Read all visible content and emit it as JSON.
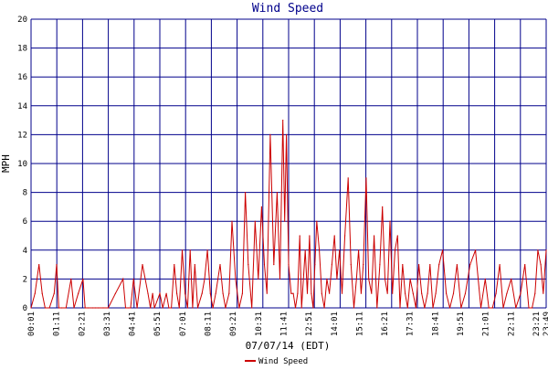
{
  "colors": {
    "title": "#00008b",
    "grid": "#00008b",
    "series": "#cc0000",
    "background": "#ffffff",
    "text": "#000000"
  },
  "chart_data": {
    "type": "line",
    "title": "Wind Speed",
    "xlabel": "07/07/14 (EDT)",
    "ylabel": "MPH",
    "ylim": [
      0,
      20
    ],
    "y_ticks": [
      "0",
      "2",
      "4",
      "6",
      "8",
      "10",
      "12",
      "14",
      "16",
      "18",
      "20"
    ],
    "x_ticks": [
      "00:01",
      "01:11",
      "02:21",
      "03:31",
      "04:41",
      "05:51",
      "07:01",
      "08:11",
      "09:21",
      "10:31",
      "11:41",
      "12:51",
      "14:01",
      "15:11",
      "16:21",
      "17:31",
      "18:41",
      "19:51",
      "21:01",
      "22:11",
      "23:21",
      "23:49"
    ],
    "grid": true,
    "legend_position": "bottom-center",
    "series": [
      {
        "name": "Wind Speed",
        "x": [
          "00:01",
          "00:12",
          "00:23",
          "00:32",
          "00:40",
          "00:52",
          "01:05",
          "01:12",
          "01:18",
          "01:26",
          "01:38",
          "01:52",
          "02:00",
          "02:12",
          "02:25",
          "02:31",
          "02:40",
          "02:52",
          "02:59",
          "03:08",
          "03:21",
          "03:35",
          "03:55",
          "04:16",
          "04:23",
          "04:30",
          "04:37",
          "04:45",
          "04:55",
          "05:10",
          "05:25",
          "05:32",
          "05:38",
          "05:43",
          "05:58",
          "06:06",
          "06:16",
          "06:23",
          "06:30",
          "06:38",
          "06:45",
          "06:52",
          "07:00",
          "07:08",
          "07:15",
          "07:22",
          "07:29",
          "07:35",
          "07:43",
          "07:55",
          "08:02",
          "08:10",
          "08:18",
          "08:25",
          "08:33",
          "08:45",
          "08:53",
          "09:00",
          "09:10",
          "09:18",
          "09:28",
          "09:38",
          "09:47",
          "09:55",
          "10:03",
          "10:13",
          "10:22",
          "10:31",
          "10:40",
          "10:48",
          "10:55",
          "11:04",
          "11:14",
          "11:23",
          "11:31",
          "11:39",
          "11:44",
          "11:49",
          "11:55",
          "12:02",
          "12:08",
          "12:14",
          "12:20",
          "12:26",
          "12:31",
          "12:36",
          "12:41",
          "12:47",
          "12:53",
          "12:58",
          "13:03",
          "13:08",
          "13:13",
          "13:20",
          "13:27",
          "13:34",
          "13:41",
          "13:48",
          "13:55",
          "14:02",
          "14:09",
          "14:16",
          "14:23",
          "14:31",
          "14:40",
          "14:48",
          "14:56",
          "15:03",
          "15:09",
          "15:16",
          "15:22",
          "15:30",
          "15:37",
          "15:45",
          "15:52",
          "16:00",
          "16:08",
          "16:15",
          "16:22",
          "16:29",
          "16:36",
          "16:43",
          "16:50",
          "16:57",
          "17:04",
          "17:11",
          "17:18",
          "17:25",
          "17:32",
          "17:40",
          "17:48",
          "17:56",
          "18:04",
          "18:12",
          "18:20",
          "18:27",
          "18:35",
          "18:43",
          "18:52",
          "19:02",
          "19:12",
          "19:22",
          "19:32",
          "19:42",
          "19:53",
          "20:05",
          "20:18",
          "20:33",
          "20:48",
          "21:00",
          "21:10",
          "21:20",
          "21:30",
          "21:40",
          "21:50",
          "22:00",
          "22:12",
          "22:25",
          "22:38",
          "22:50",
          "23:01",
          "23:10",
          "23:18",
          "23:26",
          "23:34",
          "23:41",
          "23:49"
        ],
        "values": [
          0,
          1,
          3,
          1,
          0,
          0,
          1,
          3,
          0,
          0,
          0,
          2,
          0,
          1,
          2,
          0,
          0,
          0,
          0,
          0,
          0,
          0,
          1,
          2,
          0,
          0,
          0,
          2,
          0,
          3,
          1,
          0,
          1,
          0,
          1,
          0,
          1,
          0,
          0,
          3,
          1,
          0,
          4,
          1,
          0,
          4,
          0,
          3,
          0,
          1,
          2,
          4,
          1,
          0,
          1,
          3,
          1,
          0,
          1,
          6,
          2,
          0,
          1,
          8,
          3,
          0,
          6,
          2,
          7,
          3,
          1,
          12,
          3,
          8,
          2,
          13,
          6,
          12,
          3,
          1,
          1,
          0,
          1,
          5,
          0,
          2,
          4,
          1,
          5,
          1,
          0,
          3,
          6,
          4,
          1,
          0,
          2,
          1,
          3,
          5,
          2,
          4,
          1,
          5,
          9,
          3,
          0,
          2,
          4,
          1,
          3,
          9,
          2,
          1,
          5,
          0,
          3,
          7,
          2,
          1,
          6,
          1,
          4,
          5,
          0,
          3,
          1,
          0,
          2,
          1,
          0,
          3,
          1,
          0,
          1,
          3,
          0,
          1,
          3,
          4,
          1,
          0,
          1,
          3,
          0,
          1,
          3,
          4,
          0,
          2,
          0,
          0,
          1,
          3,
          0,
          1,
          2,
          0,
          1,
          3,
          0,
          0,
          1,
          4,
          3,
          1,
          4
        ]
      }
    ]
  }
}
